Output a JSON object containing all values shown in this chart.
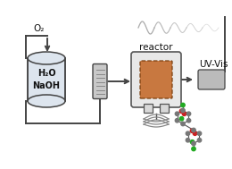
{
  "bg_color": "#ffffff",
  "tank_color": "#dde5ee",
  "tank_edge": "#444444",
  "reactor_fill": "#c87840",
  "reactor_outer": "#e0e0e0",
  "reactor_edge": "#555555",
  "reactor_dashed": "#7a4010",
  "heatex_color": "#bbbbbb",
  "arrow_color": "#333333",
  "text_color": "#111111",
  "o2_label": "O₂",
  "tank_label1": "H₂O",
  "tank_label2": "NaOH",
  "reactor_label": "reactor",
  "uv_label": "UV-Vis",
  "wave_color": "#aaaaaa",
  "mol_green": "#22aa22",
  "mol_red": "#cc2222",
  "mol_gray": "#777777",
  "mol_white": "#dddddd",
  "pipe_color": "#444444",
  "pipe_lw": 1.4,
  "uv_color": "#bbbbbb"
}
